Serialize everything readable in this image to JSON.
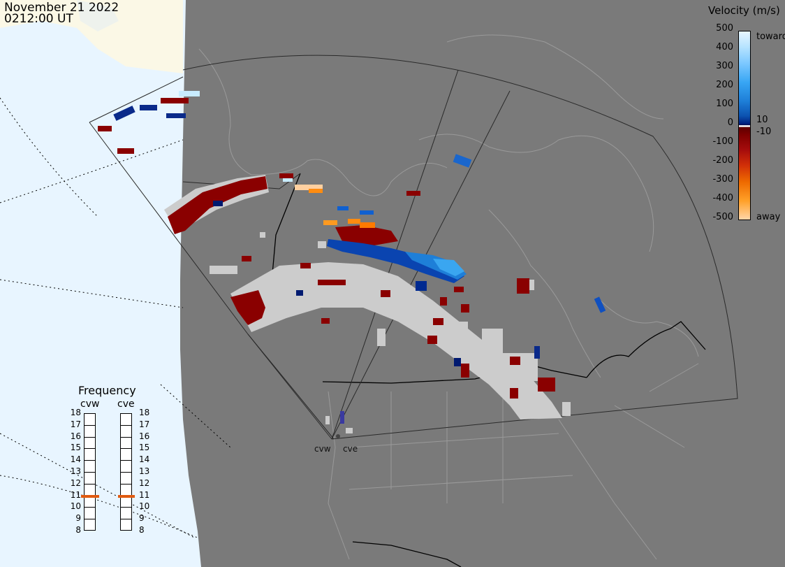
{
  "header": {
    "date": "November 21 2022",
    "time": "0212:00 UT"
  },
  "colorbar": {
    "title": "Velocity (m/s)",
    "ticks": [
      "500",
      "400",
      "300",
      "200",
      "100",
      "10",
      "0",
      "-10",
      "-100",
      "-200",
      "-300",
      "-400",
      "-500"
    ],
    "top_label": "toward",
    "bottom_label": "away"
  },
  "frequency": {
    "title": "Frequency",
    "radars": [
      "cvw",
      "cve"
    ],
    "scale": [
      "18",
      "17",
      "16",
      "15",
      "14",
      "13",
      "12",
      "11",
      "10",
      "9",
      "8"
    ],
    "cvw_mhz": 10.9,
    "cve_mhz": 10.9,
    "marker_color": "#e05a10"
  },
  "radar_labels": [
    "cvw",
    "cve"
  ],
  "colors": {
    "land": "#787878",
    "ocean": "#e8f5ff",
    "dayside_land": "#fbf8e6",
    "ground_scatter": "#cccccc"
  }
}
